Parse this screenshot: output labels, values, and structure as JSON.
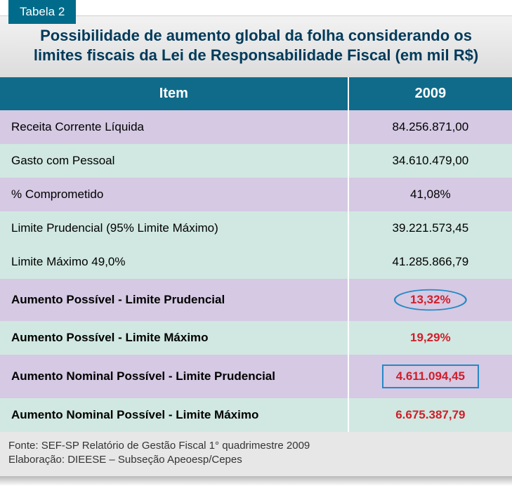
{
  "tab_label": "Tabela 2",
  "title": "Possibilidade de aumento global da folha considerando os limites fiscais da Lei de Responsabilidade Fiscal (em mil R$)",
  "columns": [
    "Item",
    "2009"
  ],
  "rows": [
    {
      "label": "Receita Corrente Líquida",
      "value": "84.256.871,00",
      "bg": "lav",
      "bold": false,
      "red": false,
      "hl": "none"
    },
    {
      "label": "Gasto com Pessoal",
      "value": "34.610.479,00",
      "bg": "mint",
      "bold": false,
      "red": false,
      "hl": "none"
    },
    {
      "label": "% Comprometido",
      "value": "41,08%",
      "bg": "lav",
      "bold": false,
      "red": false,
      "hl": "none"
    },
    {
      "label": "Limite Prudencial (95% Limite Máximo)",
      "value": "39.221.573,45",
      "bg": "mint",
      "bold": false,
      "red": false,
      "hl": "none"
    },
    {
      "label": "Limite Máximo 49,0%",
      "value": "41.285.866,79",
      "bg": "mint",
      "bold": false,
      "red": false,
      "hl": "none"
    },
    {
      "label": "Aumento Possível - Limite Prudencial",
      "value": "13,32%",
      "bg": "lav",
      "bold": true,
      "red": true,
      "hl": "ellipse"
    },
    {
      "label": "Aumento Possível - Limite Máximo",
      "value": "19,29%",
      "bg": "mint",
      "bold": true,
      "red": true,
      "hl": "none"
    },
    {
      "label": "Aumento Nominal Possível - Limite Prudencial",
      "value": "4.611.094,45",
      "bg": "lav",
      "bold": true,
      "red": true,
      "hl": "rect"
    },
    {
      "label": "Aumento Nominal Possível - Limite Máximo",
      "value": "6.675.387,79",
      "bg": "mint",
      "bold": true,
      "red": true,
      "hl": "none"
    }
  ],
  "footer_line1": "Fonte: SEF-SP Relatório de Gestão Fiscal 1° quadrimestre 2009",
  "footer_line2": "Elaboração: DIEESE – Subseção Apeoesp/Cepes",
  "colors": {
    "header_bg": "#106b8a",
    "tab_bg": "#006b8a",
    "lav": "#d5c9e3",
    "mint": "#d0e8e1",
    "red_text": "#d01e2a",
    "title_text": "#003a5a",
    "highlight_stroke": "#2688c4"
  }
}
